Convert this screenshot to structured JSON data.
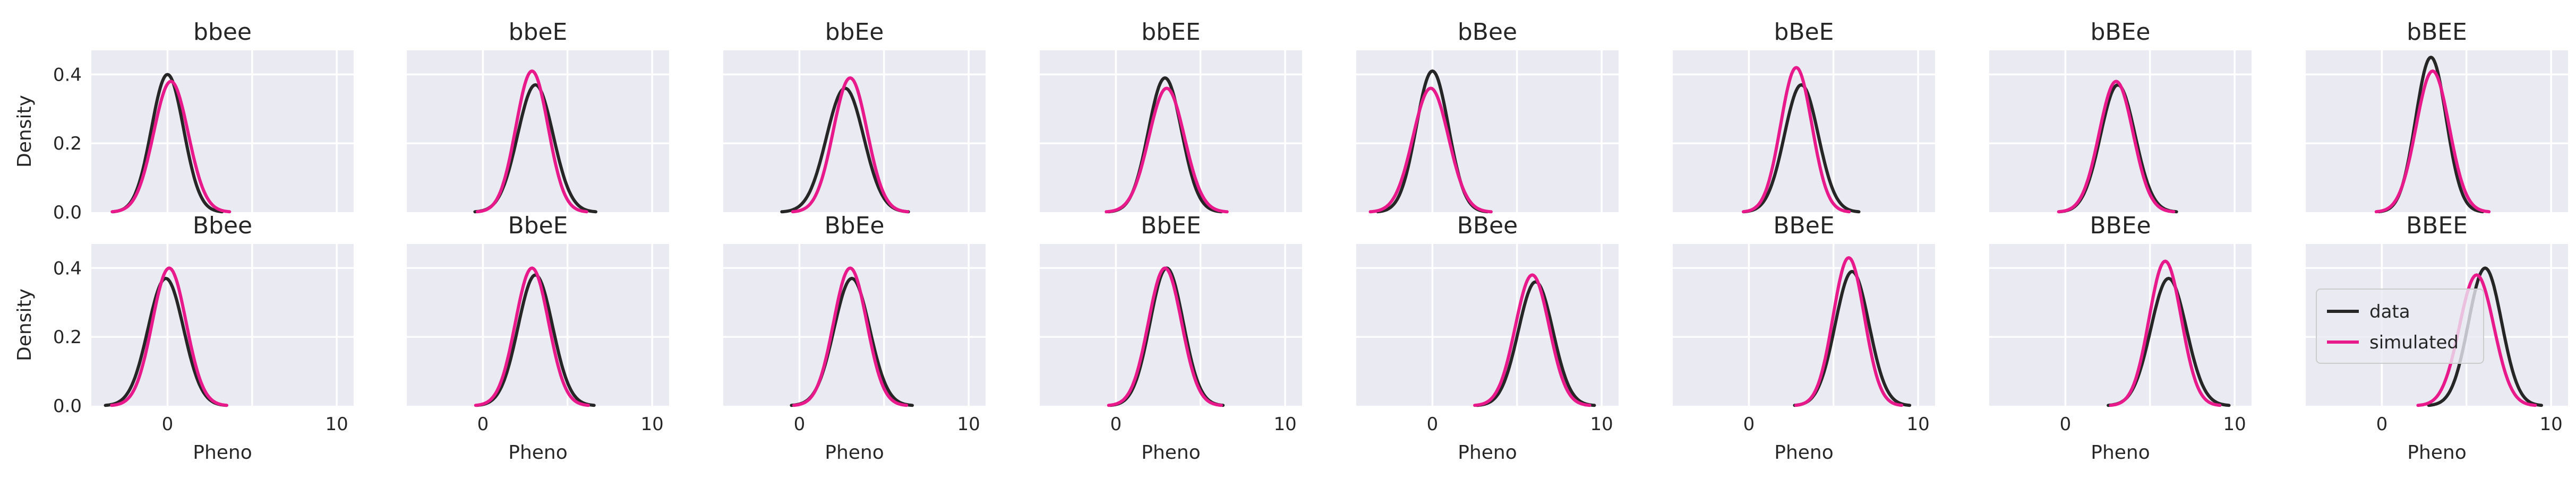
{
  "chart_data": {
    "type": "line",
    "layout": {
      "rows": 2,
      "cols": 8
    },
    "xlabel": "Pheno",
    "ylabel": "Density",
    "xlim": [
      -4.5,
      11
    ],
    "ylim": [
      0,
      0.47
    ],
    "xticks": [
      0,
      10
    ],
    "yticks": [
      0.0,
      0.2,
      0.4
    ],
    "ytick_labels": [
      "0.0",
      "0.2",
      "0.4"
    ],
    "grid": true,
    "legend": {
      "placement": "center-right",
      "panel": "BBEE",
      "entries": [
        {
          "name": "data",
          "color": "#262626"
        },
        {
          "name": "simulated",
          "color": "#e8198b"
        }
      ]
    },
    "panels": [
      {
        "title": "bbee",
        "data": {
          "mean": 0.0,
          "sd": 0.95,
          "peak": 0.4
        },
        "simulated": {
          "mean": 0.2,
          "sd": 1.02,
          "peak": 0.38
        }
      },
      {
        "title": "bbeE",
        "data": {
          "mean": 3.1,
          "sd": 1.05,
          "peak": 0.37
        },
        "simulated": {
          "mean": 2.9,
          "sd": 0.95,
          "peak": 0.41
        }
      },
      {
        "title": "bbEe",
        "data": {
          "mean": 2.7,
          "sd": 1.1,
          "peak": 0.36
        },
        "simulated": {
          "mean": 3.0,
          "sd": 1.0,
          "peak": 0.39
        }
      },
      {
        "title": "bbEE",
        "data": {
          "mean": 2.9,
          "sd": 0.98,
          "peak": 0.39
        },
        "simulated": {
          "mean": 3.0,
          "sd": 1.05,
          "peak": 0.36
        }
      },
      {
        "title": "bBee",
        "data": {
          "mean": 0.0,
          "sd": 0.95,
          "peak": 0.41
        },
        "simulated": {
          "mean": -0.1,
          "sd": 1.05,
          "peak": 0.36
        }
      },
      {
        "title": "bBeE",
        "data": {
          "mean": 3.1,
          "sd": 1.0,
          "peak": 0.37
        },
        "simulated": {
          "mean": 2.8,
          "sd": 0.92,
          "peak": 0.42
        }
      },
      {
        "title": "bBEe",
        "data": {
          "mean": 3.1,
          "sd": 1.02,
          "peak": 0.37
        },
        "simulated": {
          "mean": 3.0,
          "sd": 1.0,
          "peak": 0.38
        }
      },
      {
        "title": "bBEE",
        "data": {
          "mean": 2.9,
          "sd": 0.9,
          "peak": 0.45
        },
        "simulated": {
          "mean": 3.0,
          "sd": 0.98,
          "peak": 0.41
        }
      },
      {
        "title": "Bbee",
        "data": {
          "mean": -0.1,
          "sd": 1.05,
          "peak": 0.37
        },
        "simulated": {
          "mean": 0.1,
          "sd": 1.0,
          "peak": 0.4
        }
      },
      {
        "title": "BbeE",
        "data": {
          "mean": 3.1,
          "sd": 1.02,
          "peak": 0.38
        },
        "simulated": {
          "mean": 2.9,
          "sd": 0.98,
          "peak": 0.4
        }
      },
      {
        "title": "BbEe",
        "data": {
          "mean": 3.1,
          "sd": 1.05,
          "peak": 0.37
        },
        "simulated": {
          "mean": 3.0,
          "sd": 0.98,
          "peak": 0.4
        }
      },
      {
        "title": "BbEE",
        "data": {
          "mean": 3.0,
          "sd": 0.98,
          "peak": 0.4
        },
        "simulated": {
          "mean": 2.9,
          "sd": 0.98,
          "peak": 0.4
        }
      },
      {
        "title": "BBee",
        "data": {
          "mean": 6.1,
          "sd": 1.02,
          "peak": 0.36
        },
        "simulated": {
          "mean": 5.9,
          "sd": 1.0,
          "peak": 0.38
        }
      },
      {
        "title": "BBeE",
        "data": {
          "mean": 6.1,
          "sd": 1.0,
          "peak": 0.39
        },
        "simulated": {
          "mean": 5.9,
          "sd": 0.92,
          "peak": 0.43
        }
      },
      {
        "title": "BBEe",
        "data": {
          "mean": 6.1,
          "sd": 1.05,
          "peak": 0.37
        },
        "simulated": {
          "mean": 5.9,
          "sd": 0.95,
          "peak": 0.42
        }
      },
      {
        "title": "BBEE",
        "data": {
          "mean": 6.1,
          "sd": 0.98,
          "peak": 0.4
        },
        "simulated": {
          "mean": 5.6,
          "sd": 1.02,
          "peak": 0.38
        }
      }
    ]
  }
}
